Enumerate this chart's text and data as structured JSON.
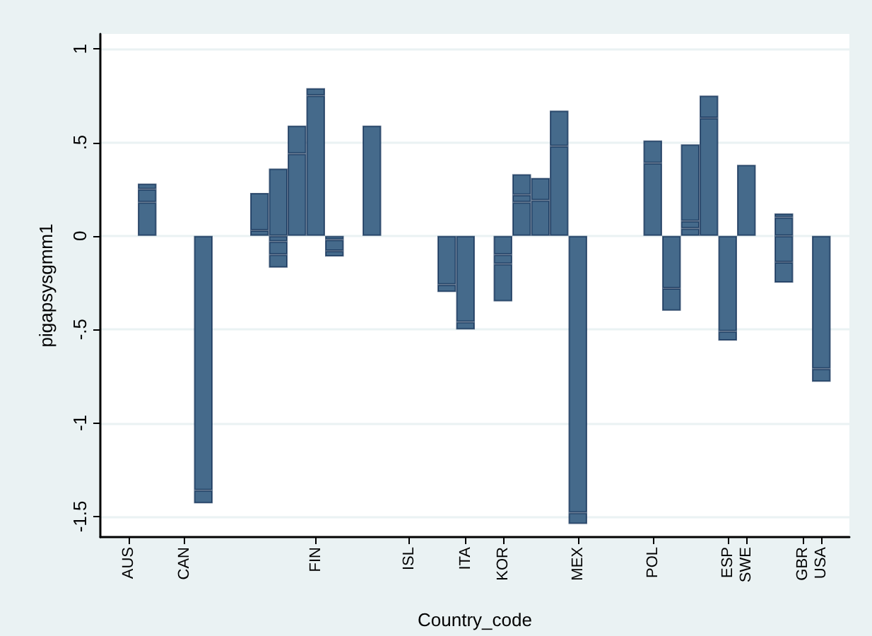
{
  "chart_data": {
    "type": "bar",
    "xlabel": "Country_code",
    "ylabel": "pigapsysgmm1",
    "stacked": true,
    "categories": [
      null,
      "AUS",
      null,
      null,
      "CAN",
      null,
      null,
      null,
      null,
      null,
      null,
      "FIN",
      null,
      null,
      null,
      null,
      "ISL",
      null,
      null,
      "ITA",
      null,
      "KOR",
      null,
      null,
      null,
      "MEX",
      null,
      null,
      null,
      "POL",
      null,
      null,
      null,
      "ESP",
      "SWE",
      null,
      null,
      "GBR",
      "USA",
      null
    ],
    "series": [
      {
        "color": "#456a8b",
        "values": [
          null,
          null,
          0.18,
          null,
          null,
          -1.36,
          null,
          null,
          0.03,
          0.36,
          0.44,
          0.75,
          -0.02,
          null,
          0.59,
          null,
          null,
          null,
          -0.26,
          -0.46,
          null,
          -0.1,
          0.18,
          0.19,
          0.48,
          -1.48,
          null,
          null,
          null,
          0.39,
          -0.28,
          0.04,
          0.63,
          -0.51,
          0.38,
          null,
          0.1,
          null,
          -0.71,
          null
        ]
      },
      {
        "color": "#456a8b",
        "values": [
          null,
          null,
          0.07,
          null,
          null,
          -0.07,
          null,
          null,
          0.2,
          -0.03,
          0.15,
          0.04,
          -0.06,
          null,
          null,
          null,
          null,
          null,
          -0.04,
          -0.04,
          null,
          -0.05,
          0.04,
          0.12,
          0.19,
          -0.06,
          null,
          null,
          null,
          0.12,
          -0.12,
          0.04,
          0.12,
          -0.05,
          null,
          null,
          0.02,
          null,
          -0.07,
          null
        ]
      },
      {
        "color": "#456a8b",
        "values": [
          null,
          null,
          0.03,
          null,
          null,
          null,
          null,
          null,
          null,
          -0.07,
          null,
          null,
          -0.03,
          null,
          null,
          null,
          null,
          null,
          null,
          null,
          null,
          -0.2,
          0.11,
          null,
          null,
          null,
          null,
          null,
          null,
          null,
          null,
          0.41,
          null,
          null,
          null,
          null,
          -0.14,
          null,
          null,
          null
        ]
      },
      {
        "color": "#456a8b",
        "values": [
          null,
          null,
          null,
          null,
          null,
          null,
          null,
          null,
          null,
          -0.07,
          null,
          null,
          null,
          null,
          null,
          null,
          null,
          null,
          null,
          null,
          null,
          null,
          null,
          null,
          null,
          null,
          null,
          null,
          null,
          null,
          null,
          null,
          null,
          null,
          null,
          null,
          -0.11,
          null,
          null,
          null
        ]
      }
    ],
    "ylim": [
      -1.61,
      1.08
    ],
    "yticks": [
      {
        "value": -1.5,
        "label": "-1.5"
      },
      {
        "value": -1,
        "label": "-1"
      },
      {
        "value": -0.5,
        "label": "-.5"
      },
      0,
      {
        "value": 0.5,
        "label": ".5"
      },
      1
    ],
    "grid": "y"
  }
}
